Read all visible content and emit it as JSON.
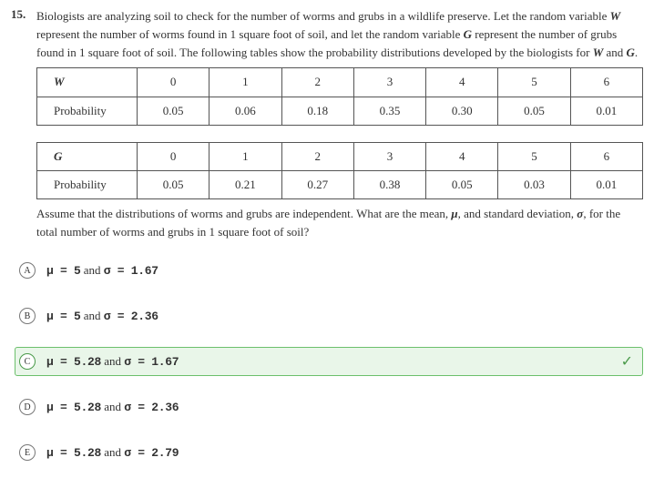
{
  "question": {
    "number": "15.",
    "text_pre": "Biologists are analyzing soil to check for the number of worms and grubs in a wildlife preserve. Let the random variable ",
    "var_W": "W",
    "text_mid1": " represent the number of worms found in 1 square foot of soil, and let the random variable ",
    "var_G": "G",
    "text_mid2": " represent the number of grubs found in 1 square foot of soil. The following tables show the probability distributions developed by the biologists for ",
    "var_W2": "W",
    "text_and": " and ",
    "var_G2": "G",
    "text_end": "."
  },
  "tableW": {
    "row1_label": "W",
    "row1": [
      "0",
      "1",
      "2",
      "3",
      "4",
      "5",
      "6"
    ],
    "row2_label": "Probability",
    "row2": [
      "0.05",
      "0.06",
      "0.18",
      "0.35",
      "0.30",
      "0.05",
      "0.01"
    ]
  },
  "tableG": {
    "row1_label": "G",
    "row1": [
      "0",
      "1",
      "2",
      "3",
      "4",
      "5",
      "6"
    ],
    "row2_label": "Probability",
    "row2": [
      "0.05",
      "0.21",
      "0.27",
      "0.38",
      "0.05",
      "0.03",
      "0.01"
    ]
  },
  "after": {
    "t1": "Assume that the distributions of worms and grubs are independent. What are the mean, ",
    "mu": "μ",
    "t2": ", and standard deviation, ",
    "sigma": "σ",
    "t3": ", for the total number of worms and grubs in 1 square foot of soil?"
  },
  "choices": {
    "A": {
      "letter": "A",
      "mu": "μ = 5",
      "and": " and ",
      "sigma": "σ = 1.67"
    },
    "B": {
      "letter": "B",
      "mu": "μ = 5",
      "and": " and ",
      "sigma": "σ = 2.36"
    },
    "C": {
      "letter": "C",
      "mu": "μ = 5.28",
      "and": " and ",
      "sigma": "σ = 1.67"
    },
    "D": {
      "letter": "D",
      "mu": "μ = 5.28",
      "and": " and ",
      "sigma": "σ = 2.36"
    },
    "E": {
      "letter": "E",
      "mu": "μ = 5.28",
      "and": " and ",
      "sigma": "σ = 2.79"
    }
  },
  "checkmark": "✓"
}
